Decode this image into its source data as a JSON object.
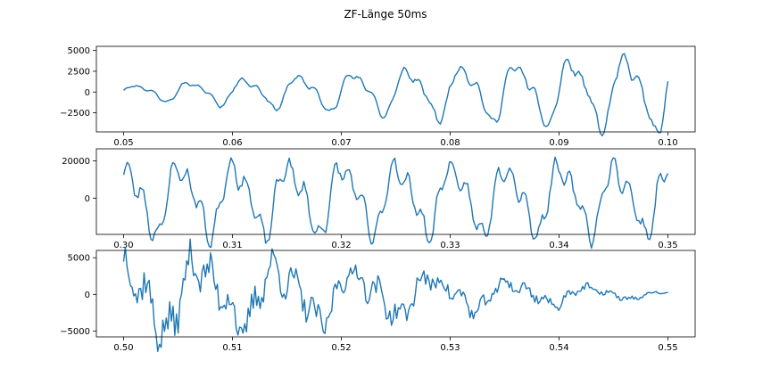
{
  "figure": {
    "title": "ZF-Länge 50ms"
  },
  "colors": {
    "line": "#1f77b4"
  },
  "chart_data": [
    {
      "type": "line",
      "title": "",
      "xlabel": "",
      "ylabel": "",
      "xlim": [
        0.0475,
        0.1025
      ],
      "ylim": [
        -4800,
        5500
      ],
      "xticks": [
        0.05,
        0.06,
        0.07,
        0.08,
        0.09,
        0.1
      ],
      "xtick_labels": [
        "0.05",
        "0.06",
        "0.07",
        "0.08",
        "0.09",
        "0.10"
      ],
      "yticks": [
        -2500,
        0,
        2500,
        5000
      ],
      "ytick_labels": [
        "−2500",
        "0",
        "2500",
        "5000"
      ],
      "grid": false,
      "signal": {
        "x_start": 0.05,
        "x_end": 0.1,
        "points": 300,
        "periods": 10,
        "amp_start": 700,
        "amp_end": 4200,
        "phase": 0.0,
        "ripple_rel": 0.18,
        "noise_rel": 0.03,
        "seed": 11
      }
    },
    {
      "type": "line",
      "title": "",
      "xlabel": "",
      "ylabel": "",
      "xlim": [
        0.2975,
        0.3525
      ],
      "ylim": [
        -19500,
        26500
      ],
      "xticks": [
        0.3,
        0.31,
        0.32,
        0.33,
        0.34,
        0.35
      ],
      "xtick_labels": [
        "0.30",
        "0.31",
        "0.32",
        "0.33",
        "0.34",
        "0.35"
      ],
      "yticks": [
        0,
        20000
      ],
      "ytick_labels": [
        "0",
        "20000"
      ],
      "grid": false,
      "signal": {
        "x_start": 0.3,
        "x_end": 0.35,
        "points": 300,
        "periods": 10,
        "amp_start": 17000,
        "amp_end": 16000,
        "phase": 1.2,
        "ripple_rel": 0.35,
        "noise_rel": 0.05,
        "seed": 23
      }
    },
    {
      "type": "line",
      "title": "",
      "xlabel": "",
      "ylabel": "",
      "xlim": [
        0.4975,
        0.5525
      ],
      "ylim": [
        -5800,
        6000
      ],
      "xticks": [
        0.5,
        0.51,
        0.52,
        0.53,
        0.54,
        0.55
      ],
      "xtick_labels": [
        "0.50",
        "0.51",
        "0.52",
        "0.53",
        "0.54",
        "0.55"
      ],
      "yticks": [
        -5000,
        0,
        5000
      ],
      "ytick_labels": [
        "−5000",
        "0",
        "5000"
      ],
      "grid": false,
      "signal": {
        "x_start": 0.5,
        "x_end": 0.55,
        "points": 320,
        "periods": 7,
        "amp_start": 4800,
        "amp_end": 200,
        "phase": 1.57,
        "ripple_rel": 0.45,
        "noise_rel": 0.22,
        "seed": 37
      }
    }
  ]
}
